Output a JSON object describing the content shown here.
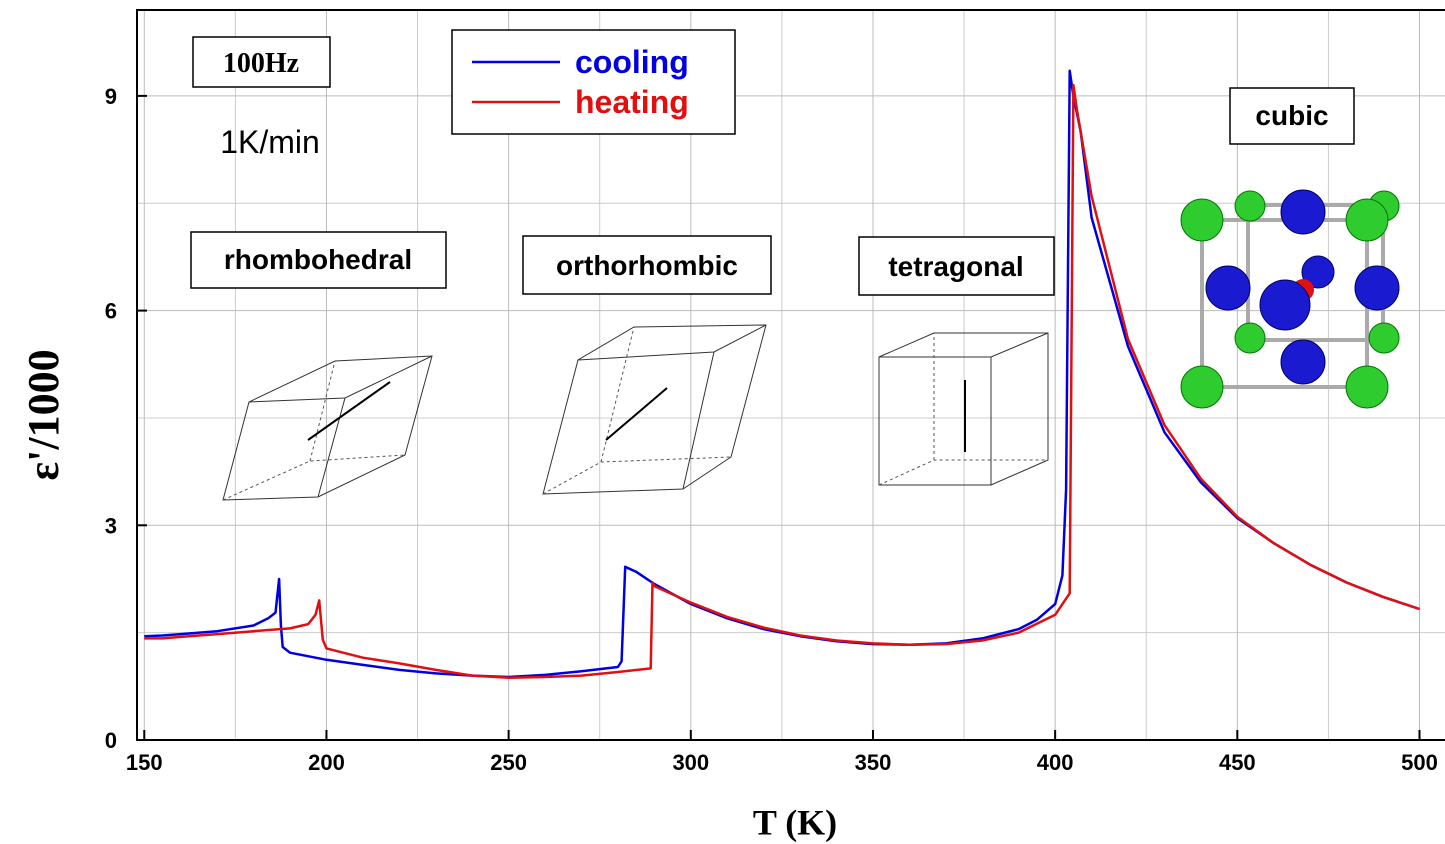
{
  "chart_data": {
    "type": "line",
    "xlabel": "T (K)",
    "ylabel": "ε'/1000",
    "xlim": [
      148,
      507
    ],
    "ylim": [
      0,
      10.2
    ],
    "xticks": [
      150,
      200,
      250,
      300,
      350,
      400,
      450,
      500
    ],
    "yticks": [
      0,
      3,
      6,
      9
    ],
    "minor_xticks": [
      175,
      225,
      275,
      325,
      375,
      425,
      475
    ],
    "minor_yticks": [
      1.5,
      4.5,
      7.5
    ],
    "grid": true,
    "legend": "top",
    "annotations": [
      "100Hz",
      "1K/min",
      "rhombohedral",
      "orthorhombic",
      "tetragonal",
      "cubic"
    ],
    "series": [
      {
        "name": "cooling",
        "color": "#0000e0",
        "x": [
          150,
          155,
          160,
          170,
          180,
          184,
          186,
          187,
          187.5,
          188,
          190,
          200,
          210,
          220,
          230,
          240,
          250,
          260,
          270,
          280,
          281,
          282,
          285,
          290,
          300,
          310,
          320,
          330,
          340,
          350,
          360,
          370,
          380,
          390,
          395,
          400,
          402,
          403,
          404,
          405,
          407,
          410,
          420,
          430,
          440,
          450,
          460,
          470,
          480,
          490,
          500
        ],
        "values": [
          1.45,
          1.46,
          1.48,
          1.52,
          1.6,
          1.7,
          1.78,
          2.25,
          1.6,
          1.3,
          1.22,
          1.12,
          1.05,
          0.98,
          0.93,
          0.9,
          0.88,
          0.91,
          0.96,
          1.02,
          1.1,
          2.42,
          2.35,
          2.18,
          1.9,
          1.7,
          1.55,
          1.45,
          1.38,
          1.34,
          1.33,
          1.35,
          1.42,
          1.55,
          1.68,
          1.9,
          2.3,
          3.5,
          9.35,
          9.0,
          8.5,
          7.3,
          5.5,
          4.3,
          3.6,
          3.1,
          2.75,
          2.45,
          2.2,
          2.0,
          1.83
        ]
      },
      {
        "name": "heating",
        "color": "#e01010",
        "x": [
          150,
          155,
          160,
          170,
          180,
          190,
          195,
          197,
          198,
          199,
          200,
          210,
          220,
          230,
          240,
          250,
          260,
          270,
          280,
          289,
          289.5,
          290,
          300,
          310,
          320,
          330,
          340,
          350,
          360,
          370,
          380,
          390,
          400,
          404,
          405,
          406,
          410,
          420,
          430,
          440,
          450,
          460,
          470,
          480,
          490,
          500
        ],
        "values": [
          1.42,
          1.42,
          1.44,
          1.48,
          1.52,
          1.56,
          1.62,
          1.75,
          1.95,
          1.4,
          1.28,
          1.15,
          1.07,
          0.98,
          0.9,
          0.87,
          0.88,
          0.9,
          0.95,
          1.0,
          2.2,
          2.15,
          1.92,
          1.72,
          1.57,
          1.46,
          1.39,
          1.35,
          1.33,
          1.34,
          1.39,
          1.5,
          1.75,
          2.05,
          9.15,
          8.8,
          7.6,
          5.6,
          4.4,
          3.65,
          3.12,
          2.75,
          2.45,
          2.2,
          2.0,
          1.83
        ]
      }
    ]
  }
}
